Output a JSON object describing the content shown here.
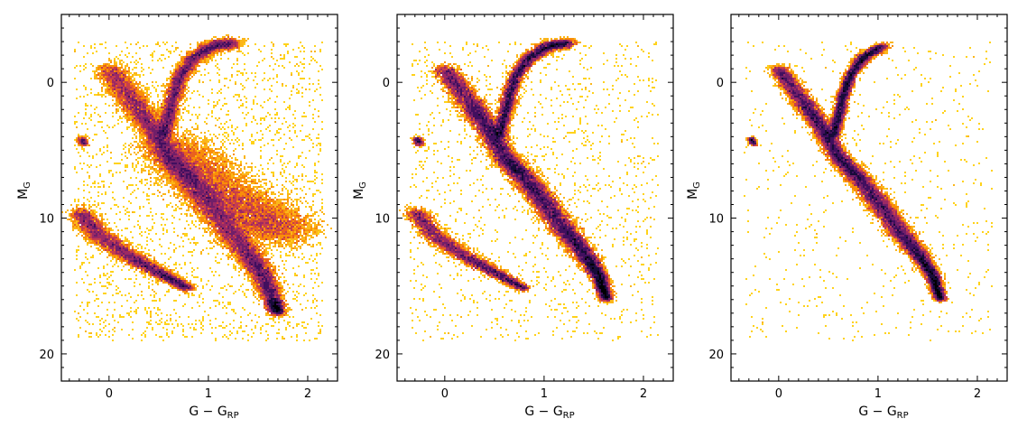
{
  "chart_data": [
    {
      "type": "heatmap",
      "xlabel": "G − G",
      "xlabel_sub": "RP",
      "ylabel": "M",
      "ylabel_sub": "G",
      "xlim": [
        -0.48,
        2.3
      ],
      "ylim": [
        22,
        -5
      ],
      "y_inverted": true,
      "xticks": [
        0,
        1,
        2
      ],
      "yticks": [
        0,
        10,
        20
      ],
      "colormap": "inferno (low density #ffcc00 → #f57d15 → #b5367a → #4a0c6b → #000004 high density)",
      "grid": false,
      "features": [
        {
          "name": "main sequence",
          "path": [
            [
              0.0,
              -1.0
            ],
            [
              0.25,
              1.5
            ],
            [
              0.45,
              3.5
            ],
            [
              0.6,
              5.5
            ],
            [
              0.8,
              7.0
            ],
            [
              1.0,
              8.8
            ],
            [
              1.2,
              10.8
            ],
            [
              1.4,
              12.6
            ],
            [
              1.55,
              14.2
            ],
            [
              1.65,
              16.0
            ],
            [
              1.7,
              17.0
            ]
          ],
          "width": [
            0.12,
            0.13,
            0.12,
            0.12,
            0.13,
            0.14,
            0.14,
            0.12,
            0.1,
            0.08,
            0.06
          ]
        },
        {
          "name": "red giant branch",
          "path": [
            [
              0.55,
              4.0
            ],
            [
              0.6,
              2.5
            ],
            [
              0.65,
              1.0
            ],
            [
              0.72,
              -0.5
            ],
            [
              0.85,
              -1.8
            ],
            [
              1.05,
              -2.7
            ],
            [
              1.25,
              -2.9
            ]
          ],
          "width": [
            0.07,
            0.07,
            0.07,
            0.07,
            0.08,
            0.09,
            0.09
          ]
        },
        {
          "name": "white dwarf sequence",
          "path": [
            [
              -0.3,
              9.5
            ],
            [
              -0.1,
              11.3
            ],
            [
              0.2,
              12.8
            ],
            [
              0.5,
              14.0
            ],
            [
              0.8,
              15.2
            ]
          ],
          "width": [
            0.1,
            0.11,
            0.1,
            0.08,
            0.06
          ]
        },
        {
          "name": "blue horizontal branch",
          "path": [
            [
              -0.28,
              4.1
            ],
            [
              -0.25,
              4.6
            ]
          ],
          "width": [
            0.04,
            0.04
          ]
        },
        {
          "name": "binary sequence",
          "path": [
            [
              0.6,
              4.5
            ],
            [
              0.9,
              6.5
            ],
            [
              1.2,
              8.5
            ],
            [
              1.5,
              10.0
            ],
            [
              1.8,
              11.0
            ]
          ],
          "width": [
            0.25,
            0.28,
            0.3,
            0.3,
            0.25
          ]
        }
      ],
      "panel_scatter": "broad (faint halo, strong binary sequence)"
    },
    {
      "type": "heatmap",
      "xlabel": "G − G",
      "xlabel_sub": "RP",
      "ylabel": "M",
      "ylabel_sub": "G",
      "xlim": [
        -0.48,
        2.3
      ],
      "ylim": [
        22,
        -5
      ],
      "y_inverted": true,
      "xticks": [
        0,
        1,
        2
      ],
      "yticks": [
        0,
        10,
        20
      ],
      "colormap": "inferno (low density #ffcc00 → #f57d15 → #b5367a → #4a0c6b → #000004 high density)",
      "grid": false,
      "features": [
        {
          "name": "main sequence",
          "path": [
            [
              0.0,
              -1.0
            ],
            [
              0.25,
              1.5
            ],
            [
              0.45,
              3.5
            ],
            [
              0.6,
              5.5
            ],
            [
              0.8,
              7.0
            ],
            [
              1.0,
              8.8
            ],
            [
              1.2,
              10.8
            ],
            [
              1.4,
              12.6
            ],
            [
              1.55,
              14.2
            ],
            [
              1.63,
              16.0
            ]
          ],
          "width": [
            0.1,
            0.11,
            0.1,
            0.1,
            0.11,
            0.11,
            0.11,
            0.09,
            0.07,
            0.05
          ]
        },
        {
          "name": "red giant branch",
          "path": [
            [
              0.55,
              4.0
            ],
            [
              0.6,
              2.5
            ],
            [
              0.65,
              1.0
            ],
            [
              0.72,
              -0.5
            ],
            [
              0.85,
              -1.8
            ],
            [
              1.05,
              -2.7
            ],
            [
              1.25,
              -2.9
            ]
          ],
          "width": [
            0.06,
            0.06,
            0.06,
            0.06,
            0.07,
            0.08,
            0.08
          ]
        },
        {
          "name": "white dwarf sequence",
          "path": [
            [
              -0.3,
              9.5
            ],
            [
              -0.1,
              11.3
            ],
            [
              0.2,
              12.8
            ],
            [
              0.5,
              14.0
            ],
            [
              0.8,
              15.2
            ]
          ],
          "width": [
            0.09,
            0.1,
            0.09,
            0.07,
            0.05
          ]
        },
        {
          "name": "blue horizontal branch",
          "path": [
            [
              -0.28,
              4.1
            ],
            [
              -0.25,
              4.6
            ]
          ],
          "width": [
            0.04,
            0.04
          ]
        }
      ],
      "panel_scatter": "medium (reduced halo)"
    },
    {
      "type": "heatmap",
      "xlabel": "G − G",
      "xlabel_sub": "RP",
      "ylabel": "M",
      "ylabel_sub": "G",
      "xlim": [
        -0.48,
        2.3
      ],
      "ylim": [
        22,
        -5
      ],
      "y_inverted": true,
      "xticks": [
        0,
        1,
        2
      ],
      "yticks": [
        0,
        10,
        20
      ],
      "colormap": "inferno (low density #ffcc00 → #f57d15 → #b5367a → #4a0c6b → #000004 high density)",
      "grid": false,
      "features": [
        {
          "name": "main sequence",
          "path": [
            [
              0.0,
              -1.0
            ],
            [
              0.25,
              1.5
            ],
            [
              0.45,
              3.5
            ],
            [
              0.6,
              5.5
            ],
            [
              0.8,
              7.0
            ],
            [
              1.0,
              8.8
            ],
            [
              1.2,
              10.8
            ],
            [
              1.4,
              12.6
            ],
            [
              1.55,
              14.2
            ],
            [
              1.63,
              16.0
            ]
          ],
          "width": [
            0.08,
            0.09,
            0.08,
            0.08,
            0.09,
            0.1,
            0.1,
            0.08,
            0.06,
            0.05
          ]
        },
        {
          "name": "red giant branch",
          "path": [
            [
              0.55,
              4.0
            ],
            [
              0.6,
              2.5
            ],
            [
              0.65,
              1.0
            ],
            [
              0.72,
              -0.5
            ],
            [
              0.85,
              -1.8
            ],
            [
              1.05,
              -2.7
            ]
          ],
          "width": [
            0.05,
            0.05,
            0.05,
            0.05,
            0.06,
            0.06
          ]
        },
        {
          "name": "blue horizontal branch",
          "path": [
            [
              -0.28,
              4.1
            ],
            [
              -0.25,
              4.6
            ]
          ],
          "width": [
            0.03,
            0.03
          ]
        }
      ],
      "panel_scatter": "narrow (no white dwarf sequence, minimal halo)"
    }
  ]
}
